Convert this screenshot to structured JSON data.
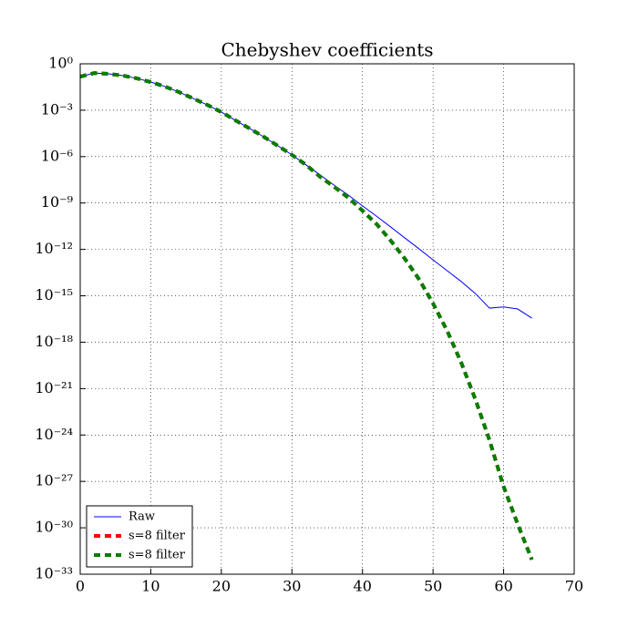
{
  "chart_data": {
    "type": "line",
    "title": "Chebyshev coefficients",
    "x": [
      0,
      2,
      4,
      6,
      8,
      10,
      12,
      14,
      16,
      18,
      20,
      22,
      24,
      26,
      28,
      30,
      32,
      34,
      36,
      38,
      40,
      42,
      44,
      46,
      48,
      50,
      52,
      54,
      56,
      58,
      60,
      62,
      64
    ],
    "series": [
      {
        "name": "Raw",
        "color": "#0000ff",
        "style": "solid",
        "values": [
          0.148,
          0.251,
          0.224,
          0.174,
          0.115,
          0.066,
          0.034,
          0.0148,
          0.0058,
          0.0022,
          0.00076,
          0.00022,
          6.6e-05,
          1.9e-05,
          5e-06,
          1.3e-06,
          2.9e-07,
          6.5e-08,
          1.4e-08,
          3.2e-09,
          6.5e-10,
          1.4e-10,
          2.8e-11,
          5.5e-12,
          1.1e-12,
          2.1e-13,
          4.2e-14,
          8.3e-15,
          1.4e-15,
          1.6e-16,
          1.9e-16,
          1.4e-16,
          3.6e-17
        ]
      },
      {
        "name": "s=8 filter",
        "color": "#ff0000",
        "style": "dashed",
        "values": [
          0.148,
          0.251,
          0.224,
          0.174,
          0.115,
          0.066,
          0.034,
          0.0148,
          0.0058,
          0.0022,
          0.00076,
          0.00022,
          6.6e-05,
          1.9e-05,
          5e-06,
          1.3e-06,
          2.9e-07,
          5e-08,
          1.1e-08,
          2.2e-09,
          3.2e-10,
          4.3e-11,
          3.7e-12,
          2.5e-13,
          1.2e-14,
          3.2e-16,
          5.4e-18,
          4.7e-20,
          2e-22,
          4.6e-25,
          4.6e-28,
          1.7e-30,
          8.7e-33
        ]
      },
      {
        "name": "s=8 filter",
        "color": "#007f00",
        "style": "dashed",
        "values": [
          0.148,
          0.251,
          0.224,
          0.174,
          0.115,
          0.066,
          0.034,
          0.0148,
          0.0058,
          0.0022,
          0.00076,
          0.00022,
          6.6e-05,
          1.9e-05,
          5e-06,
          1.3e-06,
          2.9e-07,
          5e-08,
          1.1e-08,
          2.2e-09,
          3.2e-10,
          4.3e-11,
          3.7e-12,
          2.5e-13,
          1.2e-14,
          3.2e-16,
          5.4e-18,
          4.7e-20,
          2e-22,
          4.6e-25,
          4.6e-28,
          1.7e-30,
          8.7e-33
        ]
      }
    ],
    "xlim": [
      0,
      70
    ],
    "xticks": [
      0,
      10,
      20,
      30,
      40,
      50,
      60,
      70
    ],
    "ylim": [
      1e-33,
      1
    ],
    "yscale": "log",
    "yticks": [
      {
        "value": 1,
        "label": "10⁰"
      },
      {
        "value": 0.001,
        "label": "10⁻³"
      },
      {
        "value": 1e-06,
        "label": "10⁻⁶"
      },
      {
        "value": 1e-09,
        "label": "10⁻⁹"
      },
      {
        "value": 1e-12,
        "label": "10⁻¹²"
      },
      {
        "value": 1e-15,
        "label": "10⁻¹⁵"
      },
      {
        "value": 1e-18,
        "label": "10⁻¹⁸"
      },
      {
        "value": 1e-21,
        "label": "10⁻²¹"
      },
      {
        "value": 1e-24,
        "label": "10⁻²⁴"
      },
      {
        "value": 1e-27,
        "label": "10⁻²⁷"
      },
      {
        "value": 1e-30,
        "label": "10⁻³⁰"
      },
      {
        "value": 1e-33,
        "label": "10⁻³³"
      }
    ],
    "grid": true,
    "legend": "lower left"
  }
}
